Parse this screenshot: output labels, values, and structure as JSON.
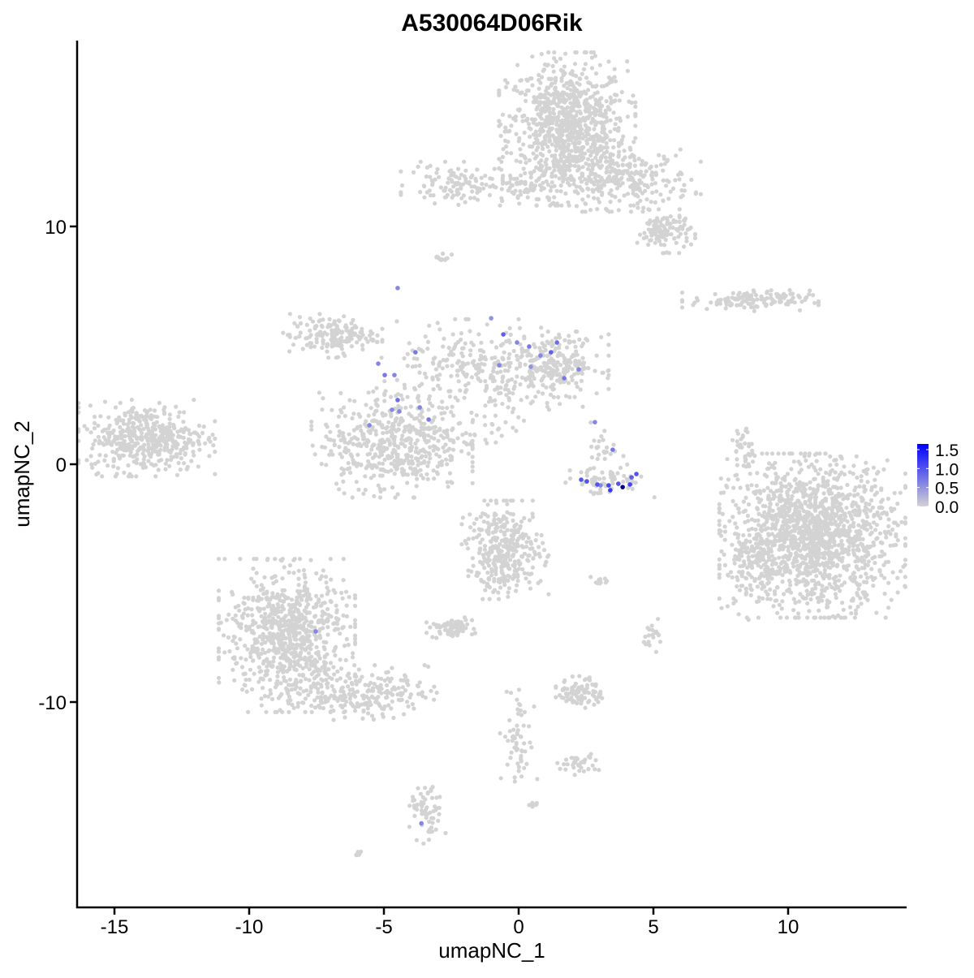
{
  "chart_data": {
    "type": "scatter",
    "title": "A530064D06Rik",
    "xlabel": "umapNC_1",
    "ylabel": "umapNC_2",
    "xlim": [
      -16.4,
      14.4
    ],
    "ylim": [
      -18.5,
      17.7
    ],
    "xticks": [
      -15,
      -10,
      -5,
      0,
      5,
      10
    ],
    "xtick_labels": [
      "-15",
      "-10",
      "-5",
      "0",
      "5",
      "10"
    ],
    "yticks": [
      -10,
      0,
      10
    ],
    "ytick_labels": [
      "-10",
      "0",
      "10"
    ],
    "grid": false,
    "legend": {
      "position": "right",
      "type": "colorbar",
      "range": [
        0,
        1.65
      ],
      "ticks": [
        0,
        0.5,
        1.0,
        1.5
      ],
      "tick_labels": [
        "0.0",
        "0.5",
        "1.0",
        "1.5"
      ],
      "low_color": "#D3D3D3",
      "high_color": "#0000FF"
    },
    "background_cell_color": "#D3D3D3",
    "background_clusters": [
      {
        "center": [
          1.8,
          14.1
        ],
        "sd": [
          1.1,
          1.4
        ],
        "n": 900
      },
      {
        "center": [
          4.0,
          12.0
        ],
        "sd": [
          1.2,
          0.6
        ],
        "n": 250
      },
      {
        "center": [
          5.4,
          9.8
        ],
        "sd": [
          0.5,
          0.4
        ],
        "n": 120
      },
      {
        "center": [
          0.3,
          11.6
        ],
        "sd": [
          0.8,
          0.3
        ],
        "n": 60
      },
      {
        "center": [
          -2.3,
          11.8
        ],
        "sd": [
          0.9,
          0.4
        ],
        "n": 110
      },
      {
        "center": [
          -2.8,
          8.7
        ],
        "sd": [
          0.15,
          0.1
        ],
        "n": 12
      },
      {
        "center": [
          8.6,
          6.9
        ],
        "sd": [
          1.1,
          0.2
        ],
        "n": 130
      },
      {
        "center": [
          -13.8,
          1.1
        ],
        "sd": [
          1.1,
          0.7
        ],
        "n": 450
      },
      {
        "center": [
          -6.9,
          5.4
        ],
        "sd": [
          0.8,
          0.4
        ],
        "n": 160
      },
      {
        "center": [
          -4.7,
          0.9
        ],
        "sd": [
          1.3,
          1.0
        ],
        "n": 500
      },
      {
        "center": [
          -1.3,
          3.8
        ],
        "sd": [
          1.6,
          1.0
        ],
        "n": 300
      },
      {
        "center": [
          1.5,
          4.2
        ],
        "sd": [
          0.8,
          0.6
        ],
        "n": 200
      },
      {
        "center": [
          -1.9,
          1.2
        ],
        "sd": [
          0.8,
          0.4
        ],
        "n": 35
      },
      {
        "center": [
          3.2,
          -0.7
        ],
        "sd": [
          0.8,
          0.3
        ],
        "n": 60
      },
      {
        "center": [
          3.2,
          0.8
        ],
        "sd": [
          0.3,
          0.5
        ],
        "n": 25
      },
      {
        "center": [
          10.9,
          -3.0
        ],
        "sd": [
          1.5,
          1.5
        ],
        "n": 1500
      },
      {
        "center": [
          8.6,
          -4.5
        ],
        "sd": [
          0.5,
          0.9
        ],
        "n": 80
      },
      {
        "center": [
          8.3,
          0.3
        ],
        "sd": [
          0.2,
          0.7
        ],
        "n": 40
      },
      {
        "center": [
          -0.5,
          -3.6
        ],
        "sd": [
          0.7,
          0.9
        ],
        "n": 350
      },
      {
        "center": [
          -2.5,
          -6.9
        ],
        "sd": [
          0.4,
          0.2
        ],
        "n": 70
      },
      {
        "center": [
          -8.6,
          -7.2
        ],
        "sd": [
          1.1,
          1.4
        ],
        "n": 800
      },
      {
        "center": [
          -5.8,
          -9.6
        ],
        "sd": [
          1.2,
          0.5
        ],
        "n": 220
      },
      {
        "center": [
          2.3,
          -9.6
        ],
        "sd": [
          0.4,
          0.3
        ],
        "n": 90
      },
      {
        "center": [
          0.0,
          -11.5
        ],
        "sd": [
          0.3,
          1.0
        ],
        "n": 60
      },
      {
        "center": [
          2.2,
          -12.6
        ],
        "sd": [
          0.4,
          0.2
        ],
        "n": 35
      },
      {
        "center": [
          5.0,
          -7.2
        ],
        "sd": [
          0.2,
          0.3
        ],
        "n": 20
      },
      {
        "center": [
          3.0,
          -4.9
        ],
        "sd": [
          0.2,
          0.1
        ],
        "n": 12
      },
      {
        "center": [
          -3.4,
          -14.7
        ],
        "sd": [
          0.3,
          0.6
        ],
        "n": 60
      },
      {
        "center": [
          -6.0,
          -16.4
        ],
        "sd": [
          0.1,
          0.05
        ],
        "n": 8
      },
      {
        "center": [
          0.6,
          -14.3
        ],
        "sd": [
          0.1,
          0.05
        ],
        "n": 6
      }
    ],
    "expressing_cells": [
      {
        "x": -4.49,
        "y": 7.41,
        "value": 0.6
      },
      {
        "x": -1.02,
        "y": 6.14,
        "value": 0.5
      },
      {
        "x": -0.57,
        "y": 5.46,
        "value": 0.9
      },
      {
        "x": -0.06,
        "y": 5.12,
        "value": 0.6
      },
      {
        "x": 0.39,
        "y": 4.95,
        "value": 0.7
      },
      {
        "x": 0.81,
        "y": 4.57,
        "value": 0.6
      },
      {
        "x": 1.2,
        "y": 4.71,
        "value": 0.9
      },
      {
        "x": 1.42,
        "y": 5.12,
        "value": 0.8
      },
      {
        "x": 1.69,
        "y": 3.62,
        "value": 0.7
      },
      {
        "x": 2.23,
        "y": 3.99,
        "value": 0.6
      },
      {
        "x": -0.72,
        "y": 4.16,
        "value": 0.6
      },
      {
        "x": 0.45,
        "y": 4.1,
        "value": 0.5
      },
      {
        "x": -5.21,
        "y": 4.23,
        "value": 0.6
      },
      {
        "x": -4.97,
        "y": 3.75,
        "value": 0.7
      },
      {
        "x": -4.61,
        "y": 3.75,
        "value": 0.6
      },
      {
        "x": -3.83,
        "y": 4.71,
        "value": 0.7
      },
      {
        "x": -4.49,
        "y": 2.7,
        "value": 0.8
      },
      {
        "x": -4.7,
        "y": 2.29,
        "value": 0.6
      },
      {
        "x": -4.43,
        "y": 2.22,
        "value": 0.6
      },
      {
        "x": -3.67,
        "y": 2.39,
        "value": 0.6
      },
      {
        "x": -3.34,
        "y": 1.88,
        "value": 0.7
      },
      {
        "x": -5.54,
        "y": 1.64,
        "value": 0.6
      },
      {
        "x": 2.83,
        "y": 1.77,
        "value": 0.6
      },
      {
        "x": 3.49,
        "y": 0.61,
        "value": 0.7
      },
      {
        "x": 2.32,
        "y": -0.65,
        "value": 1.0
      },
      {
        "x": 2.53,
        "y": -0.72,
        "value": 1.0
      },
      {
        "x": 2.92,
        "y": -0.85,
        "value": 1.0
      },
      {
        "x": 3.04,
        "y": -0.89,
        "value": 0.6
      },
      {
        "x": 3.34,
        "y": -0.89,
        "value": 1.1
      },
      {
        "x": 3.4,
        "y": -1.09,
        "value": 1.2
      },
      {
        "x": 3.7,
        "y": -0.82,
        "value": 1.0
      },
      {
        "x": 3.86,
        "y": -0.96,
        "value": 1.65
      },
      {
        "x": 4.13,
        "y": -0.85,
        "value": 1.1
      },
      {
        "x": 4.19,
        "y": -0.55,
        "value": 0.9
      },
      {
        "x": 4.37,
        "y": -0.41,
        "value": 1.0
      },
      {
        "x": -7.53,
        "y": -7.03,
        "value": 0.6
      },
      {
        "x": -3.61,
        "y": -15.1,
        "value": 0.6
      }
    ]
  }
}
